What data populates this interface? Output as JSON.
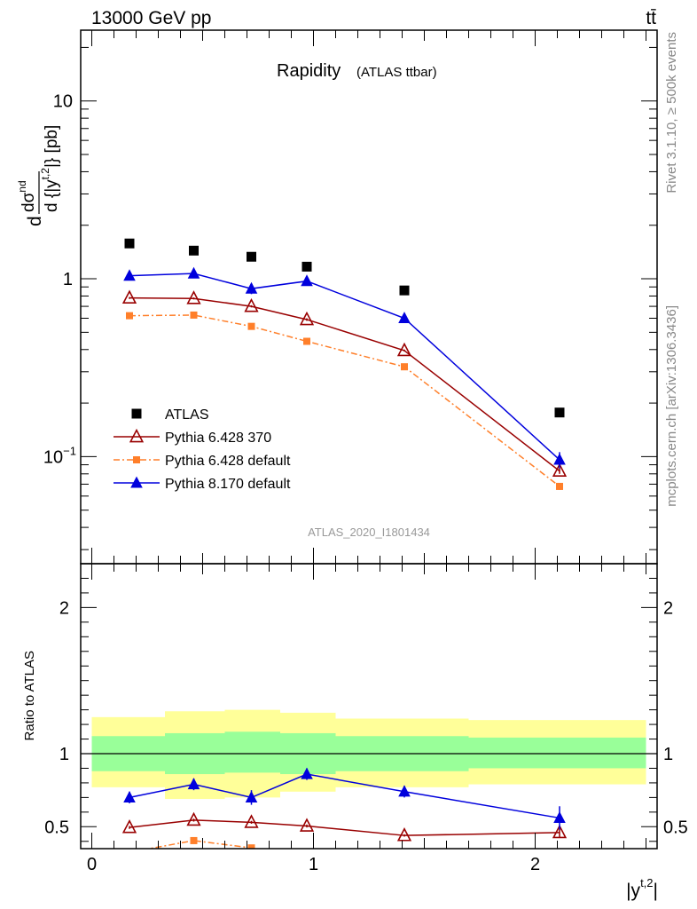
{
  "header": {
    "left": "13000 GeV pp",
    "right": "tt̄"
  },
  "side_labels": {
    "top": "Rivet 3.1.10, ≥ 500k events",
    "bottom": "mcplots.cern.ch [arXiv:1306.3436]"
  },
  "chart_data": [
    {
      "type": "line",
      "panel": "main",
      "title": "Rapidity",
      "subtitle": "(ATLAS ttbar)",
      "watermark": "ATLAS_2020_I1801434",
      "ylabel": {
        "d1": "d",
        "sigma": "dσ",
        "sup_sigma": "nd",
        "d2": "d {|y",
        "sup_y": "t,2",
        "close": "|} [pb]"
      },
      "yscale": "log",
      "ylim": [
        0.025,
        25
      ],
      "xlim": [
        -0.05,
        2.55
      ],
      "yticks": [
        {
          "value": 0.1,
          "base": "10",
          "exp": "−1"
        },
        {
          "value": 1,
          "base": "1",
          "exp": ""
        },
        {
          "value": 10,
          "base": "10",
          "exp": ""
        }
      ],
      "legend_position": "lower-left",
      "series": [
        {
          "name": "ATLAS",
          "color": "#000000",
          "marker": "square-filled",
          "line": "none",
          "x": [
            0.17,
            0.46,
            0.72,
            0.97,
            1.41,
            2.11
          ],
          "y": [
            1.58,
            1.44,
            1.33,
            1.17,
            0.86,
            0.177
          ]
        },
        {
          "name": "Pythia 6.428 370",
          "color": "#990000",
          "marker": "triangle-open",
          "line": "solid",
          "x": [
            0.17,
            0.46,
            0.72,
            0.97,
            1.41,
            2.11
          ],
          "y": [
            0.78,
            0.775,
            0.7,
            0.59,
            0.395,
            0.083
          ],
          "yerr": [
            0.01,
            0.01,
            0.01,
            0.01,
            0.005,
            0.003
          ]
        },
        {
          "name": "Pythia 6.428 default",
          "color": "#ff7f2a",
          "marker": "square-filled",
          "line": "dashdot",
          "x": [
            0.17,
            0.46,
            0.72,
            0.97,
            1.41,
            2.11
          ],
          "y": [
            0.62,
            0.625,
            0.54,
            0.445,
            0.32,
            0.068
          ],
          "yerr": [
            0.01,
            0.01,
            0.01,
            0.01,
            0.005,
            0.003
          ]
        },
        {
          "name": "Pythia 8.170 default",
          "color": "#0000dd",
          "marker": "triangle-filled",
          "line": "solid",
          "x": [
            0.17,
            0.46,
            0.72,
            0.97,
            1.41,
            2.11
          ],
          "y": [
            1.04,
            1.07,
            0.88,
            0.97,
            0.6,
            0.096
          ],
          "yerr": [
            0.06,
            0.06,
            0.06,
            0.05,
            0.03,
            0.01
          ]
        }
      ]
    },
    {
      "type": "line",
      "panel": "ratio",
      "ylabel": "Ratio to ATLAS",
      "xlabel": {
        "base": "|y",
        "sup": "t,2",
        "close": "|"
      },
      "ylim": [
        0.35,
        2.3
      ],
      "xlim": [
        -0.05,
        2.55
      ],
      "yticks": [
        0.5,
        1,
        2
      ],
      "xticks": [
        0,
        1,
        2
      ],
      "bands": {
        "edges": [
          0,
          0.33,
          0.6,
          0.85,
          1.1,
          1.7,
          2.5
        ],
        "green_low": [
          0.88,
          0.86,
          0.87,
          0.86,
          0.88,
          0.9
        ],
        "green_high": [
          1.12,
          1.14,
          1.15,
          1.14,
          1.12,
          1.11
        ],
        "yellow_low": [
          0.77,
          0.69,
          0.7,
          0.74,
          0.77,
          0.79
        ],
        "yellow_high": [
          1.25,
          1.29,
          1.3,
          1.28,
          1.24,
          1.23
        ],
        "green_color": "#99ff99",
        "yellow_color": "#ffff99"
      },
      "series": [
        {
          "name": "Pythia 6.428 370",
          "color": "#990000",
          "marker": "triangle-open",
          "line": "solid",
          "x": [
            0.17,
            0.46,
            0.72,
            0.97,
            1.41,
            2.11
          ],
          "y": [
            0.495,
            0.545,
            0.53,
            0.505,
            0.44,
            0.46
          ],
          "yerr": [
            0.01,
            0.01,
            0.01,
            0.01,
            0.008,
            0.03
          ]
        },
        {
          "name": "Pythia 6.428 default",
          "color": "#ff7f2a",
          "marker": "square-filled",
          "line": "dashdot",
          "x": [
            0.17,
            0.46,
            0.72
          ],
          "y": [
            0.325,
            0.405,
            0.355
          ],
          "yerr": [
            0.01,
            0.015,
            0.015
          ]
        },
        {
          "name": "Pythia 8.170 default",
          "color": "#0000dd",
          "marker": "triangle-filled",
          "line": "solid",
          "x": [
            0.17,
            0.46,
            0.72,
            0.97,
            1.41,
            2.11
          ],
          "y": [
            0.7,
            0.79,
            0.7,
            0.86,
            0.74,
            0.56
          ],
          "yerr": [
            0.04,
            0.04,
            0.05,
            0.04,
            0.04,
            0.08
          ]
        }
      ]
    }
  ]
}
